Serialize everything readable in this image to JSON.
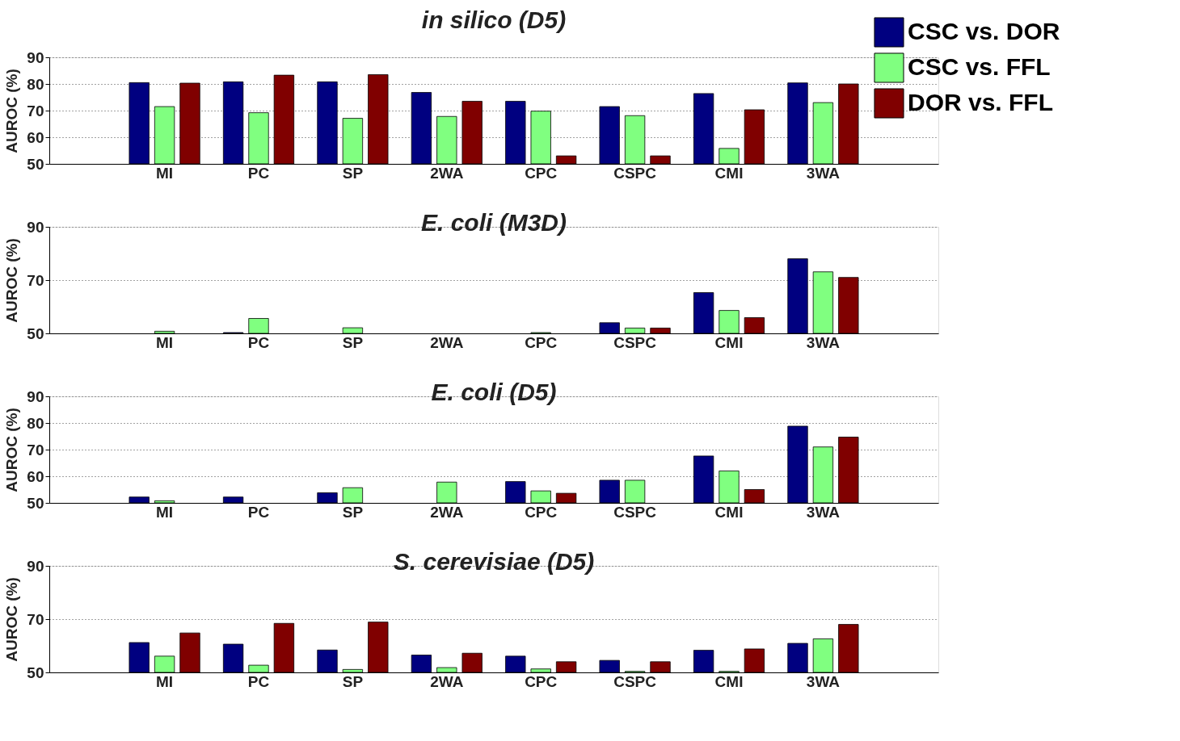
{
  "chart_data": [
    {
      "type": "bar",
      "title": "in silico (D5)",
      "ylabel": "AUROC (%)",
      "categories": [
        "MI",
        "PC",
        "SP",
        "2WA",
        "CPC",
        "CSPC",
        "CMI",
        "3WA"
      ],
      "legend": "top right",
      "grid": "y",
      "ylim": [
        50,
        90
      ],
      "yticks": [
        50,
        60,
        70,
        80,
        90
      ],
      "series": [
        {
          "name": "CSC vs. DOR",
          "color": "#000080",
          "values": [
            80.5,
            80.8,
            80.8,
            76.8,
            73.5,
            71.5,
            76.4,
            80.4
          ]
        },
        {
          "name": "CSC vs. FFL",
          "color": "#80ff80",
          "values": [
            71.5,
            69.2,
            67.1,
            67.8,
            69.8,
            68.1,
            55.8,
            73.0
          ]
        },
        {
          "name": "DOR vs. FFL",
          "color": "#800000",
          "values": [
            80.3,
            83.3,
            83.5,
            73.5,
            53.0,
            53.0,
            70.3,
            80.0
          ]
        }
      ]
    },
    {
      "type": "bar",
      "title": "E. coli (M3D)",
      "ylabel": "AUROC (%)",
      "categories": [
        "MI",
        "PC",
        "SP",
        "2WA",
        "CPC",
        "CSPC",
        "CMI",
        "3WA"
      ],
      "grid": "y",
      "ylim": [
        50,
        90
      ],
      "yticks": [
        50,
        70,
        90
      ],
      "series": [
        {
          "color": "#000080",
          "values": [
            null,
            50.3,
            null,
            null,
            null,
            54.0,
            65.3,
            78.0
          ]
        },
        {
          "color": "#80ff80",
          "values": [
            50.8,
            55.6,
            52.1,
            null,
            50.3,
            52.0,
            58.6,
            73.1
          ]
        },
        {
          "color": "#800000",
          "values": [
            null,
            null,
            null,
            null,
            null,
            52.0,
            55.9,
            71.0
          ]
        }
      ]
    },
    {
      "type": "bar",
      "title": "E. coli (D5)",
      "ylabel": "AUROC (%)",
      "categories": [
        "MI",
        "PC",
        "SP",
        "2WA",
        "CPC",
        "CSPC",
        "CMI",
        "3WA"
      ],
      "grid": "y",
      "ylim": [
        50,
        90
      ],
      "yticks": [
        50,
        60,
        70,
        80,
        90
      ],
      "series": [
        {
          "color": "#000080",
          "values": [
            52.2,
            52.2,
            53.8,
            null,
            58.0,
            58.5,
            67.6,
            78.8
          ]
        },
        {
          "color": "#80ff80",
          "values": [
            50.8,
            null,
            55.7,
            57.8,
            54.5,
            58.5,
            62.0,
            71.0
          ]
        },
        {
          "color": "#800000",
          "values": [
            null,
            null,
            null,
            null,
            53.6,
            null,
            55.0,
            74.7
          ]
        }
      ]
    },
    {
      "type": "bar",
      "title": "S. cerevisiae (D5)",
      "ylabel": "AUROC (%)",
      "categories": [
        "MI",
        "PC",
        "SP",
        "2WA",
        "CPC",
        "CSPC",
        "CMI",
        "3WA"
      ],
      "grid": "y",
      "ylim": [
        50,
        90
      ],
      "yticks": [
        50,
        70,
        90
      ],
      "series": [
        {
          "color": "#000080",
          "values": [
            61.2,
            60.6,
            58.4,
            56.5,
            56.1,
            54.5,
            58.3,
            60.9
          ]
        },
        {
          "color": "#80ff80",
          "values": [
            56.1,
            52.7,
            51.1,
            51.8,
            51.3,
            50.4,
            50.4,
            62.6
          ]
        },
        {
          "color": "#800000",
          "values": [
            64.8,
            68.4,
            68.9,
            57.2,
            54.0,
            54.0,
            58.8,
            68.0
          ]
        }
      ]
    }
  ]
}
